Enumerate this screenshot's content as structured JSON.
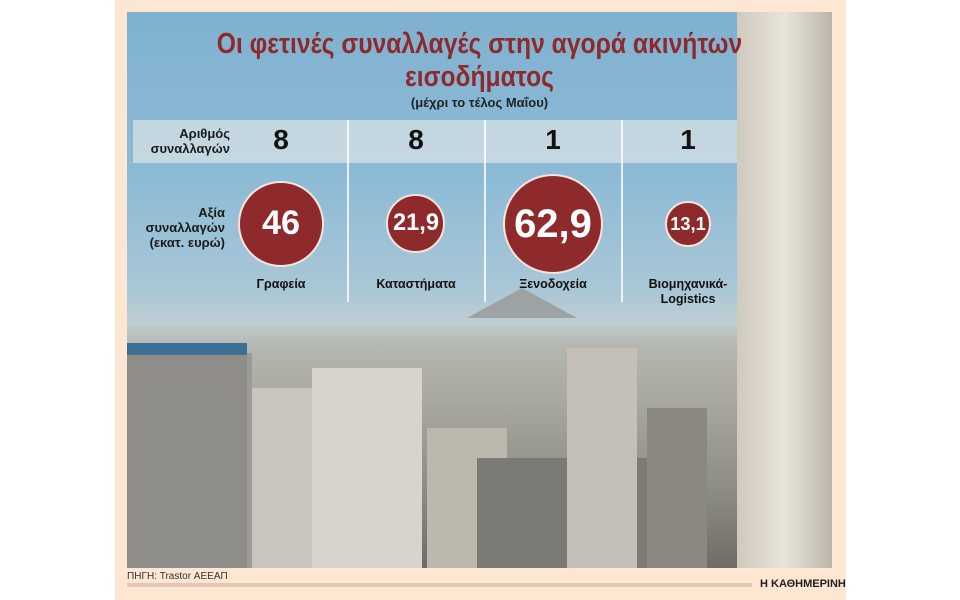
{
  "chart_data": {
    "type": "bubble",
    "title": "Οι φετινές συναλλαγές στην αγορά ακινήτων εισοδήματος",
    "subtitle": "(μέχρι το τέλος Μαΐου)",
    "row_labels": {
      "count": "Αριθμός συναλλαγών",
      "value": "Αξία συναλλαγών (εκατ. ευρώ)"
    },
    "categories": [
      "Γραφεία",
      "Καταστήματα",
      "Ξενοδοχεία",
      "Βιομηχανικά-Logistics"
    ],
    "series": [
      {
        "name": "Αριθμός συναλλαγών",
        "values": [
          8,
          8,
          1,
          1
        ],
        "labels": [
          "8",
          "8",
          "1",
          "1"
        ]
      },
      {
        "name": "Αξία συναλλαγών (εκατ. ευρώ)",
        "values": [
          46,
          21.9,
          62.9,
          13.1
        ],
        "labels": [
          "46",
          "21,9",
          "62,9",
          "13,1"
        ]
      }
    ],
    "bubble_color": "#8e2a2c",
    "source": "ΠΗΓΗ: Trastor ΑΕΕΑΠ",
    "brand": "Η ΚΑΘΗΜΕΡΙΝΗ"
  }
}
